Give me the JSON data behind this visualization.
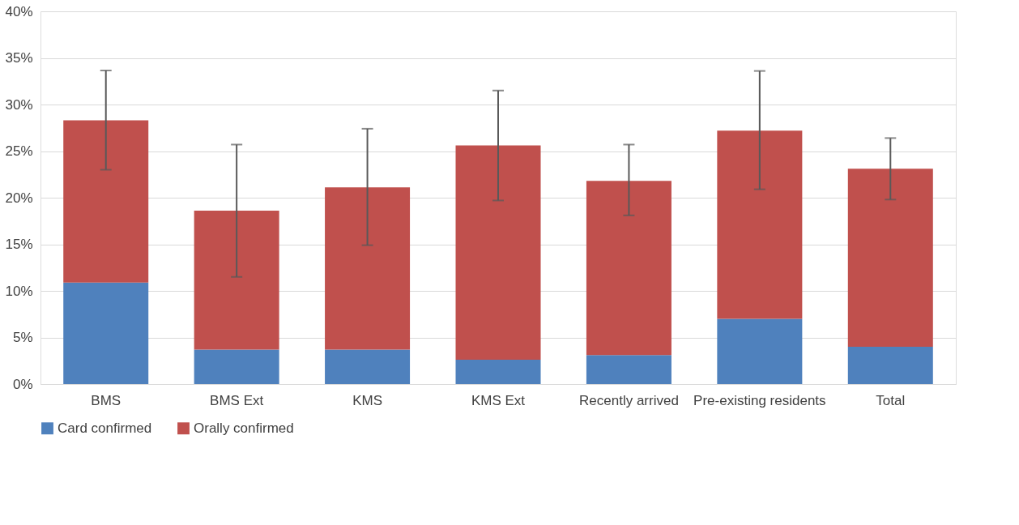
{
  "chart_data": {
    "type": "bar",
    "stacked": true,
    "categories": [
      "BMS",
      "BMS Ext",
      "KMS",
      "KMS Ext",
      "Recently arrived",
      "Pre-existing residents",
      "Total"
    ],
    "series": [
      {
        "name": "Card confirmed",
        "color": "#4f81bd",
        "values": [
          10.9,
          3.7,
          3.7,
          2.6,
          3.1,
          7.0,
          4.0
        ]
      },
      {
        "name": "Orally confirmed",
        "color": "#c0504d",
        "values": [
          17.4,
          14.9,
          17.4,
          23.0,
          18.7,
          20.2,
          19.1
        ],
        "errors": [
          [
            23.0,
            33.65
          ],
          [
            11.5,
            25.7
          ],
          [
            14.9,
            27.4
          ],
          [
            19.7,
            31.5
          ],
          [
            18.1,
            25.7
          ],
          [
            20.9,
            33.6
          ],
          [
            19.8,
            26.4
          ]
        ]
      }
    ],
    "ylim": [
      0,
      40
    ],
    "yticks": [
      {
        "value": 0,
        "label": "0%"
      },
      {
        "value": 5,
        "label": "5%"
      },
      {
        "value": 10,
        "label": "10%"
      },
      {
        "value": 15,
        "label": "15%"
      },
      {
        "value": 20,
        "label": "20%"
      },
      {
        "value": 25,
        "label": "25%"
      },
      {
        "value": 30,
        "label": "30%"
      },
      {
        "value": 35,
        "label": "35%"
      },
      {
        "value": 40,
        "label": "40%"
      }
    ],
    "grid": "y",
    "legend": "bottom"
  }
}
